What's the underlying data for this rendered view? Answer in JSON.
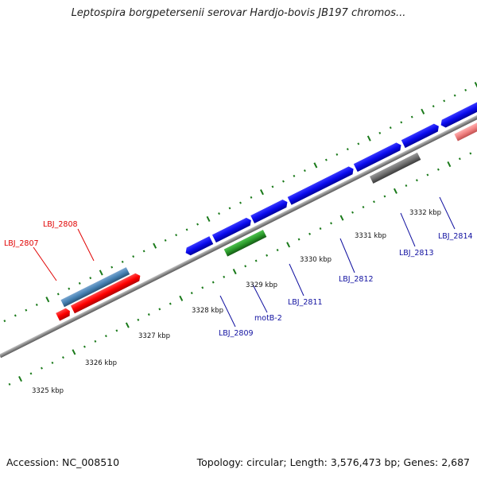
{
  "title": "Leptospira borgpetersenii serovar Hardjo-bovis JB197 chromos...",
  "footer": {
    "accession": "Accession: NC_008510",
    "summary": "Topology: circular; Length: 3,576,473 bp; Genes: 2,687"
  },
  "scale_labels": [
    "3325 kbp",
    "3326 kbp",
    "3327 kbp",
    "3328 kbp",
    "3329 kbp",
    "3330 kbp",
    "3331 kbp",
    "3332 kbp"
  ],
  "gene_labels": [
    {
      "name": "LBJ_2807",
      "color": "#e00000"
    },
    {
      "name": "LBJ_2808",
      "color": "#e00000"
    },
    {
      "name": "LBJ_2809",
      "color": "#1010a0"
    },
    {
      "name": "motB-2",
      "color": "#1010a0"
    },
    {
      "name": "LBJ_2811",
      "color": "#1010a0"
    },
    {
      "name": "LBJ_2812",
      "color": "#1010a0"
    },
    {
      "name": "LBJ_2813",
      "color": "#1010a0"
    },
    {
      "name": "LBJ_2814",
      "color": "#1010a0"
    }
  ],
  "colors": {
    "backbone": "#8a8a8a",
    "tick": "#1a7a1a",
    "gene_red": "#ff0000",
    "gene_blue": "#0a0aee",
    "gene_green": "#2a9a2a",
    "gene_steelblue": "#4682b4",
    "gene_gray": "#707070",
    "gene_pink": "#f08080"
  }
}
